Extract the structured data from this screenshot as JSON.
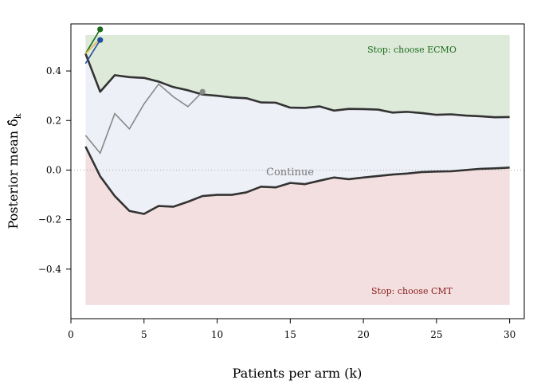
{
  "chart_data": {
    "type": "line",
    "xlabel": "Patients per arm (k)",
    "ylabel": "Posterior mean δ̂",
    "ylabel_subscript": "k",
    "xlim": [
      0,
      31
    ],
    "ylim": [
      -0.6,
      0.59
    ],
    "x_ticks": [
      0,
      5,
      10,
      15,
      20,
      25,
      30
    ],
    "y_ticks": [
      -0.4,
      -0.2,
      0.0,
      0.2,
      0.4
    ],
    "x_tick_labels": [
      "0",
      "5",
      "10",
      "15",
      "20",
      "25",
      "30"
    ],
    "y_tick_labels": [
      "−0.4",
      "−0.2",
      "0.0",
      "0.2",
      "0.4"
    ],
    "grid": false,
    "zero_line": {
      "y": 0,
      "style": "dotted",
      "color": "#aaaaaa"
    },
    "regions": [
      {
        "name": "stop-ecmo",
        "label": "Stop: choose ECMO",
        "color": "#dde9d9",
        "label_color": "#1a6b1a"
      },
      {
        "name": "continue",
        "label": "Continue",
        "color": "#eef0f7",
        "label_color": "#777777"
      },
      {
        "name": "stop-cmt",
        "label": "Stop: choose CMT",
        "color": "#f3dfdf",
        "label_color": "#8b1a1a"
      }
    ],
    "boundary_x": [
      1,
      2,
      3,
      4,
      5,
      6,
      7,
      8,
      9,
      10,
      11,
      12,
      13,
      14,
      15,
      16,
      17,
      18,
      19,
      20,
      21,
      22,
      23,
      24,
      25,
      26,
      27,
      28,
      29,
      30
    ],
    "upper_boundary": [
      0.47,
      0.316,
      0.383,
      0.375,
      0.372,
      0.357,
      0.335,
      0.322,
      0.305,
      0.3,
      0.293,
      0.29,
      0.273,
      0.272,
      0.252,
      0.251,
      0.257,
      0.24,
      0.247,
      0.246,
      0.244,
      0.232,
      0.235,
      0.23,
      0.223,
      0.225,
      0.22,
      0.217,
      0.213,
      0.214
    ],
    "lower_boundary": [
      0.095,
      -0.025,
      -0.105,
      -0.165,
      -0.177,
      -0.145,
      -0.148,
      -0.128,
      -0.105,
      -0.1,
      -0.1,
      -0.09,
      -0.067,
      -0.07,
      -0.052,
      -0.057,
      -0.043,
      -0.03,
      -0.037,
      -0.03,
      -0.024,
      -0.018,
      -0.014,
      -0.008,
      -0.006,
      -0.005,
      0.0,
      0.005,
      0.007,
      0.01
    ],
    "upper_region_top": 0.545,
    "lower_region_bottom": -0.545,
    "boundary_color": "#333333",
    "series": [
      {
        "x": [
          1,
          2
        ],
        "values": [
          0.47,
          0.568
        ],
        "color": "#1a6b1a",
        "end_marker": true
      },
      {
        "x": [
          1,
          2
        ],
        "values": [
          0.47,
          0.53
        ],
        "color": "#e6b84d",
        "end_marker": false
      },
      {
        "x": [
          1,
          2
        ],
        "values": [
          0.43,
          0.525
        ],
        "color": "#1f4e9c",
        "end_marker": true
      },
      {
        "x": [
          1,
          2,
          3,
          4,
          5,
          6,
          7,
          8,
          9
        ],
        "values": [
          0.14,
          0.068,
          0.228,
          0.166,
          0.267,
          0.347,
          0.296,
          0.256,
          0.316
        ],
        "color": "#888888",
        "end_marker": true
      }
    ]
  }
}
